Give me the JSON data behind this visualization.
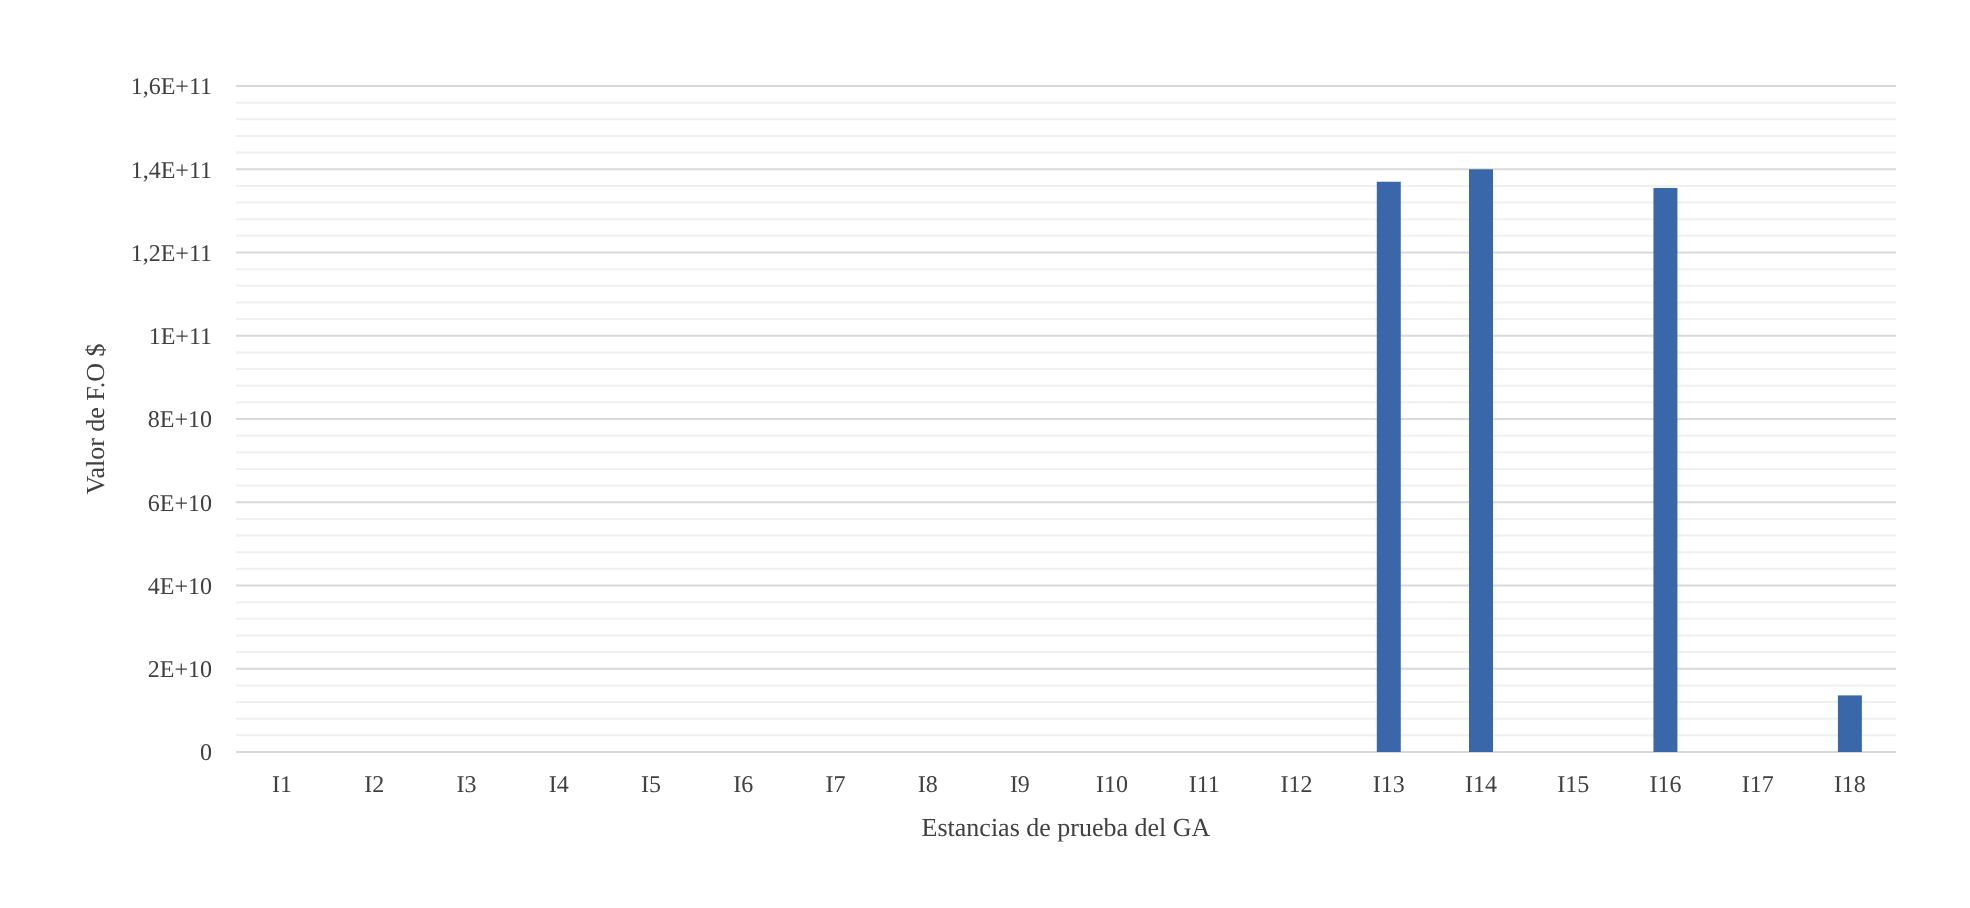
{
  "chart_data": {
    "type": "bar",
    "xlabel": "Estancias de prueba del GA",
    "ylabel": "Valor de F.O $",
    "categories": [
      "I1",
      "I2",
      "I3",
      "I4",
      "I5",
      "I6",
      "I7",
      "I8",
      "I9",
      "I10",
      "I11",
      "I12",
      "I13",
      "I14",
      "I15",
      "I16",
      "I17",
      "I18"
    ],
    "values": [
      0,
      0,
      0,
      0,
      0,
      0,
      0,
      0,
      0,
      0,
      0,
      0,
      137000000000,
      140000000000,
      0,
      135500000000,
      0,
      13600000000
    ],
    "color": "#3a67a9",
    "ylim": [
      0,
      160000000000
    ],
    "yticks": [
      0,
      {
        "value": 20000000000,
        "label": "2E+10"
      },
      {
        "value": 40000000000,
        "label": "4E+10"
      },
      {
        "value": 60000000000,
        "label": "6E+10"
      },
      {
        "value": 80000000000,
        "label": "8E+10"
      },
      {
        "value": 100000000000,
        "label": "1E+11"
      },
      {
        "value": 120000000000,
        "label": "1,2E+11"
      },
      {
        "value": 140000000000,
        "label": "1,4E+11"
      },
      {
        "value": 160000000000,
        "label": "1,6E+11"
      }
    ],
    "grid": true
  }
}
